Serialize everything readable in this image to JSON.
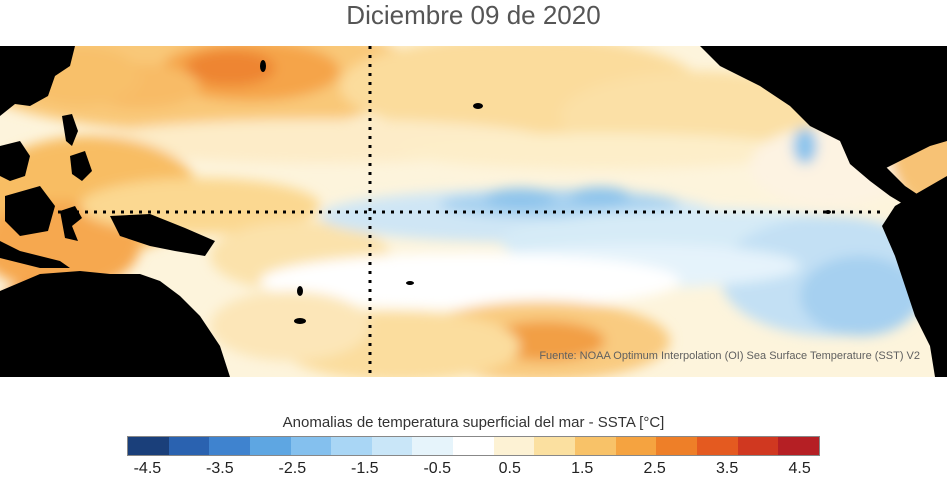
{
  "title": "Diciembre 09 de 2020",
  "source": "Fuente: NOAA Optimum Interpolation (OI) Sea Surface Temperature (SST) V2",
  "colorbar": {
    "label": "Anomalias de temperatura superficial del mar - SSTA  [°C]",
    "colors": [
      "#1a3f7a",
      "#2a62b0",
      "#3f83cf",
      "#5ea6e2",
      "#84c0ee",
      "#a9d6f5",
      "#c9e6f8",
      "#e6f4fb",
      "#ffffff",
      "#fdf2d4",
      "#fbe0a0",
      "#f8c268",
      "#f5a340",
      "#ee7f28",
      "#e45a20",
      "#d03820",
      "#b51f24"
    ],
    "ticks": [
      "-4.5",
      "-3.5",
      "-2.5",
      "-1.5",
      "-0.5",
      "0.5",
      "1.5",
      "2.5",
      "3.5",
      "4.5"
    ]
  },
  "map": {
    "region": "Pacífico tropical",
    "reference_lines": [
      "Ecuador (0°)",
      "180°"
    ]
  }
}
